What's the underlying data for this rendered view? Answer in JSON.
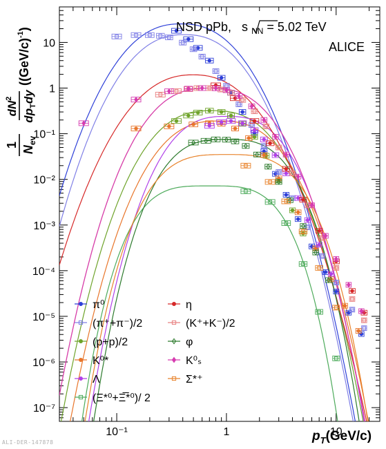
{
  "watermark": "ALI-DER-147878",
  "chart_data": {
    "type": "scatter",
    "title": "",
    "annotations": {
      "system_prefix": "NSD pPb, ",
      "sqrt_s": "s",
      "sqrt_sub": "NN",
      "energy": " = 5.02 TeV",
      "experiment": "ALICE"
    },
    "xlabel": {
      "main": "p",
      "sub": "T",
      "unit": "(GeV/c)"
    },
    "ylabel": {
      "frac1_num": "1",
      "frac1_den": "N",
      "frac1_den_sub": "ev",
      "frac2_num": "dN",
      "frac2_num_sup": "2",
      "frac2_den": "dp",
      "frac2_den_sub": "T",
      "frac2_den_tail": "dy",
      "unit": "((GeV/c)",
      "unit_sup": "-1",
      "unit_close": ")"
    },
    "x_scale": "log",
    "y_scale": "log",
    "xlim": [
      0.03,
      25
    ],
    "ylim": [
      5e-08,
      60
    ],
    "x_ticks": [
      {
        "v": 0.1,
        "label": "10⁻¹"
      },
      {
        "v": 1,
        "label": "1"
      },
      {
        "v": 10,
        "label": "10"
      }
    ],
    "y_ticks": [
      {
        "v": 10,
        "label": "10"
      },
      {
        "v": 1,
        "label": "1"
      },
      {
        "v": 0.1,
        "label": "10⁻¹"
      },
      {
        "v": 0.01,
        "label": "10⁻²"
      },
      {
        "v": 0.001,
        "label": "10⁻³"
      },
      {
        "v": 0.0001,
        "label": "10⁻⁴"
      },
      {
        "v": 1e-05,
        "label": "10⁻⁵"
      },
      {
        "v": 1e-06,
        "label": "10⁻⁶"
      },
      {
        "v": 1e-07,
        "label": "10⁻⁷"
      }
    ],
    "legend_placement": "bottom-left",
    "series": [
      {
        "name": "π⁰",
        "color": "#2d3fd8",
        "marker": "filled-circle",
        "fit": {
          "A": 25.5,
          "mu": -0.95,
          "s": 1.02,
          "k": 2.35
        },
        "x": [
          0.35,
          0.45,
          0.55,
          0.7,
          0.9,
          1.1,
          1.4,
          1.8,
          2.2,
          2.8,
          3.5,
          4.5,
          6,
          8,
          10,
          13,
          17
        ],
        "y": [
          18,
          11.8,
          7.6,
          4.0,
          1.68,
          0.79,
          0.3,
          0.104,
          0.041,
          0.0132,
          0.0046,
          0.00135,
          0.00034,
          9.3e-05,
          3.5e-05,
          1.2e-05,
          4.1e-06
        ]
      },
      {
        "name": "(π⁺+π⁻)/2",
        "color": "#7f7fe6",
        "marker": "open-square",
        "fit": {
          "A": 14.8,
          "mu": -0.88,
          "s": 1.0,
          "k": 2.35
        },
        "x": [
          0.1,
          0.15,
          0.2,
          0.25,
          0.3,
          0.4,
          0.5,
          0.6,
          0.8,
          1.0,
          1.3,
          1.7,
          2.2,
          3.0,
          4.0,
          5.5,
          7.5,
          10,
          14,
          18
        ],
        "y": [
          13.5,
          14.5,
          14.5,
          14.0,
          12.9,
          9.9,
          7.1,
          4.9,
          2.35,
          1.12,
          0.44,
          0.155,
          0.054,
          0.0145,
          0.0039,
          0.00089,
          0.00021,
          5.5e-05,
          1.4e-05,
          5.5e-06
        ]
      },
      {
        "name": "(p+p)/2",
        "color": "#6ea32a",
        "marker": "filled-circle",
        "fit": {
          "A": 0.32,
          "mu": -0.3,
          "s": 1.1,
          "k": 2.6
        },
        "x": [
          0.35,
          0.45,
          0.55,
          0.7,
          0.9,
          1.1,
          1.4,
          1.8,
          2.3,
          3.0,
          4.0,
          5.0
        ],
        "y": [
          0.19,
          0.25,
          0.29,
          0.32,
          0.3,
          0.25,
          0.165,
          0.085,
          0.033,
          0.0095,
          0.0021,
          0.00065
        ]
      },
      {
        "name": "K⁰*",
        "color": "#e8752a",
        "marker": "filled-circle",
        "fit": {
          "A": 0.19,
          "mu": -0.15,
          "s": 1.1,
          "k": 2.6
        },
        "x": [
          0.15,
          0.3,
          0.5,
          0.7,
          0.9,
          1.2,
          1.6,
          2.2,
          3.0,
          4.5,
          6.5,
          9,
          12,
          16
        ],
        "y": [
          0.13,
          0.145,
          0.16,
          0.17,
          0.165,
          0.13,
          0.08,
          0.034,
          0.0105,
          0.0019,
          0.00031,
          6.5e-05,
          1.7e-05,
          4.8e-06
        ]
      },
      {
        "name": "Λ",
        "color": "#b040e8",
        "marker": "filled-circle",
        "fit": {
          "A": 0.24,
          "mu": 0.0,
          "s": 1.05,
          "k": 2.7
        },
        "x": [
          0.7,
          0.9,
          1.1,
          1.4,
          1.8,
          2.2,
          2.8,
          3.5,
          4.5,
          5.5,
          7,
          9
        ],
        "y": [
          0.15,
          0.18,
          0.19,
          0.17,
          0.12,
          0.075,
          0.034,
          0.0135,
          0.0039,
          0.00128,
          0.00037,
          8.5e-05
        ]
      },
      {
        "name": "(Ξ*⁰+Ξ̅*⁰)/ 2",
        "color": "#4caa5a",
        "marker": "open-square",
        "fit": {
          "A": 0.0072,
          "mu": -0.35,
          "s": 1.35,
          "k": 3.6
        },
        "x": [
          1.5,
          2.5,
          3.5,
          5,
          7,
          10
        ],
        "y": [
          0.0055,
          0.0032,
          0.0011,
          0.00014,
          1.25e-05,
          1.2e-06
        ]
      },
      {
        "name": "η",
        "color": "#d62828",
        "marker": "filled-circle",
        "fit": {
          "A": 1.95,
          "mu": -0.7,
          "s": 1.05,
          "k": 2.3
        },
        "x": [
          0.8,
          1.2,
          1.8,
          2.5,
          3.5,
          5,
          7,
          10,
          14,
          18
        ],
        "y": [
          1.15,
          0.6,
          0.19,
          0.062,
          0.017,
          0.0036,
          0.00075,
          0.00016,
          3.6e-05,
          1.2e-05
        ]
      },
      {
        "name": "(K⁺+K⁻)/2",
        "color": "#e88080",
        "marker": "open-square",
        "fit": {
          "A": 1.0,
          "mu": -0.35,
          "s": 1.1,
          "k": 2.6
        },
        "x": [
          0.25,
          0.35,
          0.45,
          0.55,
          0.7,
          0.9,
          1.1,
          1.4,
          1.8,
          2.3,
          3.0,
          4.0,
          5.5,
          7.5,
          10,
          14,
          18
        ],
        "y": [
          0.72,
          0.86,
          0.95,
          1.0,
          1.0,
          0.93,
          0.79,
          0.55,
          0.31,
          0.145,
          0.05,
          0.0135,
          0.0027,
          0.00052,
          0.000115,
          2.4e-05,
          8.2e-06
        ]
      },
      {
        "name": "φ",
        "color": "#2c7a2c",
        "marker": "open-diamond",
        "fit": {
          "A": 0.075,
          "mu": 0.0,
          "s": 1.15,
          "k": 3.0
        },
        "x": [
          0.5,
          0.65,
          0.8,
          1.0,
          1.2,
          1.5,
          1.9,
          2.4,
          3.0,
          3.8,
          5.0,
          6.5,
          8.5
        ],
        "y": [
          0.064,
          0.07,
          0.075,
          0.074,
          0.068,
          0.054,
          0.035,
          0.019,
          0.0088,
          0.0035,
          0.00095,
          0.00025,
          6.2e-05
        ]
      },
      {
        "name": "K⁰ₛ",
        "color": "#d63cb0",
        "marker": "filled-diamond",
        "fit": {
          "A": 1.0,
          "mu": -0.35,
          "s": 1.1,
          "k": 2.6
        },
        "x": [
          0.05,
          0.15,
          0.3,
          0.45,
          0.6,
          0.8,
          1.0,
          1.3,
          1.7,
          2.2,
          2.8,
          3.5,
          4.5,
          6,
          8,
          10,
          13,
          17
        ],
        "y": [
          0.17,
          0.56,
          0.85,
          0.97,
          1.0,
          0.99,
          0.9,
          0.67,
          0.4,
          0.2,
          0.086,
          0.035,
          0.0115,
          0.0027,
          0.00058,
          0.00018,
          4.9e-05,
          1.3e-05
        ]
      },
      {
        "name": "Σ*⁺",
        "color": "#e8822a",
        "marker": "open-square",
        "fit": {
          "A": 0.035,
          "mu": 0.0,
          "s": 1.35,
          "k": 3.3
        },
        "x": [
          1.5,
          2.5,
          3.5,
          5,
          7,
          10
        ],
        "y": [
          0.02,
          0.0088,
          0.0033,
          0.00072,
          0.000115,
          1.55e-05
        ]
      }
    ]
  }
}
